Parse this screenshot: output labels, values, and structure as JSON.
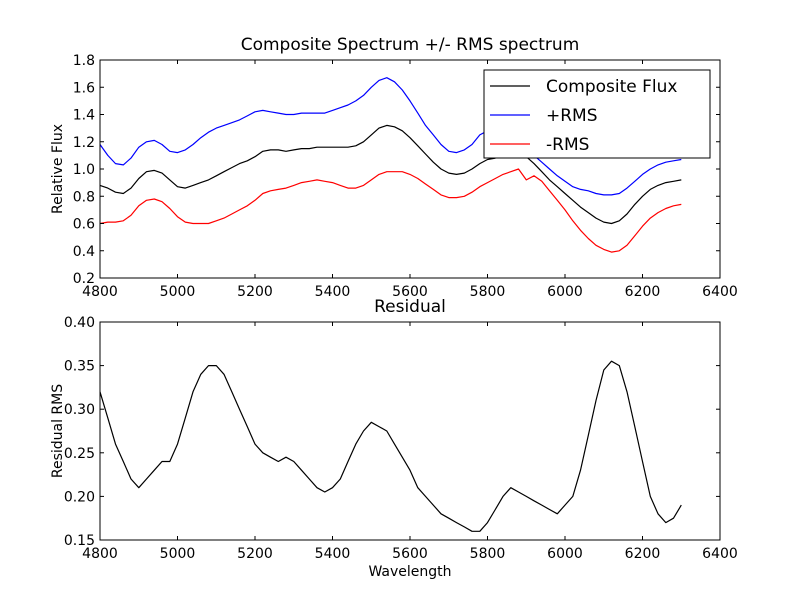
{
  "chart_data": [
    {
      "type": "line",
      "title": "Composite Spectrum +/- RMS spectrum",
      "xlabel": "",
      "ylabel": "Relative Flux",
      "xlim": [
        4800,
        6400
      ],
      "ylim": [
        0.2,
        1.8
      ],
      "xticks": [
        "4800",
        "5000",
        "5200",
        "5400",
        "5600",
        "5800",
        "6000",
        "6200",
        "6400"
      ],
      "yticks": [
        "0.2",
        "0.4",
        "0.6",
        "0.8",
        "1.0",
        "1.2",
        "1.4",
        "1.6",
        "1.8"
      ],
      "grid": false,
      "legend_position": "top-right",
      "legend": [
        "Composite Flux",
        "+RMS",
        "-RMS"
      ],
      "series": [
        {
          "name": "Composite Flux",
          "color": "#000000",
          "x": [
            4800,
            4820,
            4840,
            4860,
            4880,
            4900,
            4920,
            4940,
            4960,
            4980,
            5000,
            5020,
            5040,
            5060,
            5080,
            5100,
            5120,
            5140,
            5160,
            5180,
            5200,
            5220,
            5240,
            5260,
            5280,
            5300,
            5320,
            5340,
            5360,
            5380,
            5400,
            5420,
            5440,
            5460,
            5480,
            5500,
            5520,
            5540,
            5560,
            5580,
            5600,
            5620,
            5640,
            5660,
            5680,
            5700,
            5720,
            5740,
            5760,
            5780,
            5800,
            5820,
            5840,
            5860,
            5880,
            5900,
            5920,
            5940,
            5960,
            5980,
            6000,
            6020,
            6040,
            6060,
            6080,
            6100,
            6120,
            6140,
            6160,
            6180,
            6200,
            6220,
            6240,
            6260,
            6280,
            6300
          ],
          "values": [
            0.88,
            0.86,
            0.83,
            0.82,
            0.86,
            0.93,
            0.98,
            0.99,
            0.97,
            0.92,
            0.87,
            0.86,
            0.88,
            0.9,
            0.92,
            0.95,
            0.98,
            1.01,
            1.04,
            1.06,
            1.09,
            1.13,
            1.14,
            1.14,
            1.13,
            1.14,
            1.15,
            1.15,
            1.16,
            1.16,
            1.16,
            1.16,
            1.16,
            1.17,
            1.2,
            1.25,
            1.3,
            1.32,
            1.31,
            1.28,
            1.23,
            1.17,
            1.11,
            1.05,
            1.0,
            0.97,
            0.96,
            0.97,
            1.0,
            1.04,
            1.07,
            1.08,
            1.1,
            1.12,
            1.12,
            1.09,
            1.04,
            0.98,
            0.92,
            0.87,
            0.82,
            0.77,
            0.72,
            0.68,
            0.64,
            0.61,
            0.6,
            0.62,
            0.67,
            0.74,
            0.8,
            0.85,
            0.88,
            0.9,
            0.91,
            0.92
          ]
        },
        {
          "name": "+RMS",
          "color": "#0000ff",
          "x": [
            4800,
            4820,
            4840,
            4860,
            4880,
            4900,
            4920,
            4940,
            4960,
            4980,
            5000,
            5020,
            5040,
            5060,
            5080,
            5100,
            5120,
            5140,
            5160,
            5180,
            5200,
            5220,
            5240,
            5260,
            5280,
            5300,
            5320,
            5340,
            5360,
            5380,
            5400,
            5420,
            5440,
            5460,
            5480,
            5500,
            5520,
            5540,
            5560,
            5580,
            5600,
            5620,
            5640,
            5660,
            5680,
            5700,
            5720,
            5740,
            5760,
            5780,
            5800,
            5820,
            5840,
            5860,
            5880,
            5900,
            5920,
            5940,
            5960,
            5980,
            6000,
            6020,
            6040,
            6060,
            6080,
            6100,
            6120,
            6140,
            6160,
            6180,
            6200,
            6220,
            6240,
            6260,
            6280,
            6300
          ],
          "values": [
            1.18,
            1.1,
            1.04,
            1.03,
            1.08,
            1.16,
            1.2,
            1.21,
            1.18,
            1.13,
            1.12,
            1.14,
            1.18,
            1.23,
            1.27,
            1.3,
            1.32,
            1.34,
            1.36,
            1.39,
            1.42,
            1.43,
            1.42,
            1.41,
            1.4,
            1.4,
            1.41,
            1.41,
            1.41,
            1.41,
            1.43,
            1.45,
            1.47,
            1.5,
            1.54,
            1.6,
            1.65,
            1.67,
            1.64,
            1.58,
            1.5,
            1.41,
            1.32,
            1.25,
            1.18,
            1.13,
            1.12,
            1.14,
            1.18,
            1.25,
            1.28,
            1.28,
            1.26,
            1.22,
            1.18,
            1.14,
            1.1,
            1.05,
            1.0,
            0.95,
            0.91,
            0.87,
            0.85,
            0.84,
            0.82,
            0.81,
            0.81,
            0.82,
            0.86,
            0.91,
            0.96,
            1.0,
            1.03,
            1.05,
            1.06,
            1.07
          ]
        },
        {
          "name": "-RMS",
          "color": "#ff0000",
          "x": [
            4800,
            4820,
            4840,
            4860,
            4880,
            4900,
            4920,
            4940,
            4960,
            4980,
            5000,
            5020,
            5040,
            5060,
            5080,
            5100,
            5120,
            5140,
            5160,
            5180,
            5200,
            5220,
            5240,
            5260,
            5280,
            5300,
            5320,
            5340,
            5360,
            5380,
            5400,
            5420,
            5440,
            5460,
            5480,
            5500,
            5520,
            5540,
            5560,
            5580,
            5600,
            5620,
            5640,
            5660,
            5680,
            5700,
            5720,
            5740,
            5760,
            5780,
            5800,
            5820,
            5840,
            5860,
            5880,
            5900,
            5920,
            5940,
            5960,
            5980,
            6000,
            6020,
            6040,
            6060,
            6080,
            6100,
            6120,
            6140,
            6160,
            6180,
            6200,
            6220,
            6240,
            6260,
            6280,
            6300
          ],
          "values": [
            0.6,
            0.61,
            0.61,
            0.62,
            0.66,
            0.73,
            0.77,
            0.78,
            0.76,
            0.71,
            0.65,
            0.61,
            0.6,
            0.6,
            0.6,
            0.62,
            0.64,
            0.67,
            0.7,
            0.73,
            0.77,
            0.82,
            0.84,
            0.85,
            0.86,
            0.88,
            0.9,
            0.91,
            0.92,
            0.91,
            0.9,
            0.88,
            0.86,
            0.86,
            0.88,
            0.92,
            0.96,
            0.98,
            0.98,
            0.98,
            0.96,
            0.93,
            0.89,
            0.85,
            0.81,
            0.79,
            0.79,
            0.8,
            0.83,
            0.87,
            0.9,
            0.93,
            0.96,
            0.98,
            1.0,
            0.92,
            0.95,
            0.91,
            0.84,
            0.77,
            0.7,
            0.62,
            0.55,
            0.49,
            0.44,
            0.41,
            0.39,
            0.4,
            0.44,
            0.51,
            0.58,
            0.64,
            0.68,
            0.71,
            0.73,
            0.74
          ]
        }
      ]
    },
    {
      "type": "line",
      "title": "Residual",
      "xlabel": "Wavelength",
      "ylabel": "Residual RMS",
      "xlim": [
        4800,
        6400
      ],
      "ylim": [
        0.15,
        0.4
      ],
      "xticks": [
        "4800",
        "5000",
        "5200",
        "5400",
        "5600",
        "5800",
        "6000",
        "6200",
        "6400"
      ],
      "yticks": [
        "0.15",
        "0.20",
        "0.25",
        "0.30",
        "0.35",
        "0.40"
      ],
      "grid": false,
      "series": [
        {
          "color": "#000000",
          "x": [
            4800,
            4820,
            4840,
            4860,
            4880,
            4900,
            4920,
            4940,
            4960,
            4980,
            5000,
            5020,
            5040,
            5060,
            5080,
            5100,
            5120,
            5140,
            5160,
            5180,
            5200,
            5220,
            5240,
            5260,
            5280,
            5300,
            5320,
            5340,
            5360,
            5380,
            5400,
            5420,
            5440,
            5460,
            5480,
            5500,
            5520,
            5540,
            5560,
            5580,
            5600,
            5620,
            5640,
            5660,
            5680,
            5700,
            5720,
            5740,
            5760,
            5780,
            5800,
            5820,
            5840,
            5860,
            5880,
            5900,
            5920,
            5940,
            5960,
            5980,
            6000,
            6020,
            6040,
            6060,
            6080,
            6100,
            6120,
            6140,
            6160,
            6180,
            6200,
            6220,
            6240,
            6260,
            6280,
            6300
          ],
          "values": [
            0.32,
            0.29,
            0.26,
            0.24,
            0.22,
            0.21,
            0.22,
            0.23,
            0.24,
            0.24,
            0.26,
            0.29,
            0.32,
            0.34,
            0.35,
            0.35,
            0.34,
            0.32,
            0.3,
            0.28,
            0.26,
            0.25,
            0.245,
            0.24,
            0.245,
            0.24,
            0.23,
            0.22,
            0.21,
            0.205,
            0.21,
            0.22,
            0.24,
            0.26,
            0.275,
            0.285,
            0.28,
            0.275,
            0.26,
            0.245,
            0.23,
            0.21,
            0.2,
            0.19,
            0.18,
            0.175,
            0.17,
            0.165,
            0.16,
            0.16,
            0.17,
            0.185,
            0.2,
            0.21,
            0.205,
            0.2,
            0.195,
            0.19,
            0.185,
            0.18,
            0.19,
            0.2,
            0.23,
            0.27,
            0.31,
            0.345,
            0.355,
            0.35,
            0.32,
            0.28,
            0.24,
            0.2,
            0.18,
            0.17,
            0.175,
            0.19
          ]
        }
      ]
    }
  ]
}
